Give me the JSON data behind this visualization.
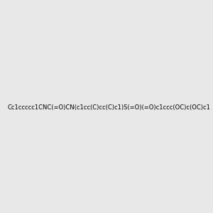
{
  "smiles": "Cc1ccccc1CNC(=O)CN(c1cc(C)cc(C)c1)S(=O)(=O)c1ccc(OC)c(OC)c1",
  "image_size": 300,
  "background_color": "#e8e8e8",
  "title": ""
}
